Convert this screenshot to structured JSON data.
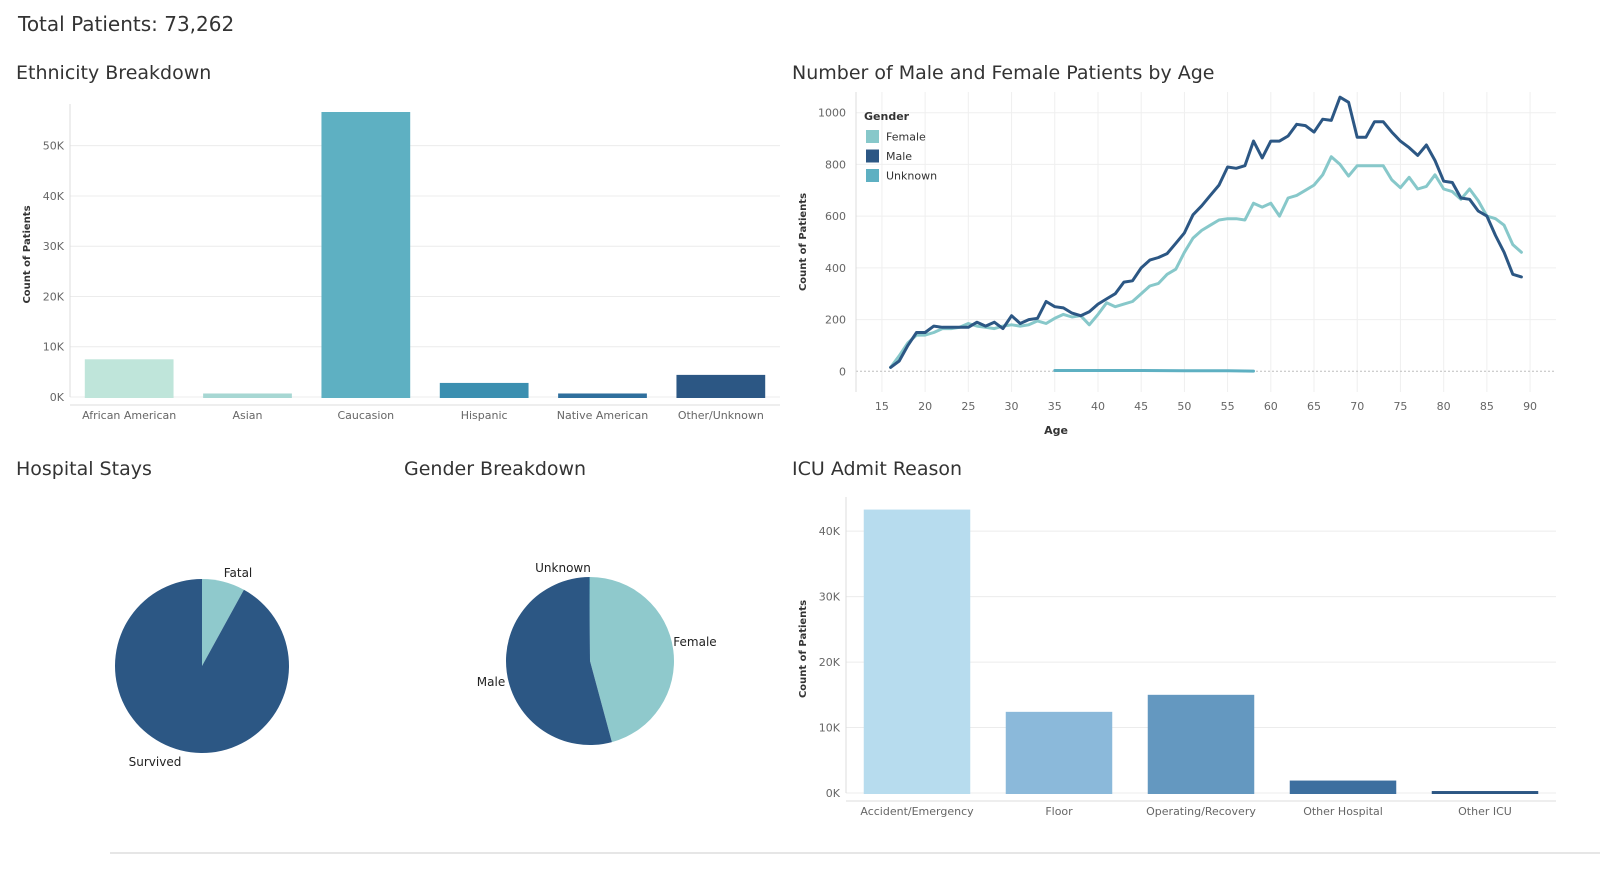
{
  "header": {
    "total_label": "Total Patients: 73,262"
  },
  "colors": {
    "ethnicity": [
      "#bfe5da",
      "#a7d7d3",
      "#5eb0c2",
      "#3b8fb0",
      "#2f6f9d",
      "#2c5784"
    ],
    "female": "#87c8ca",
    "male": "#2c5784",
    "unknown": "#5eb0c2",
    "icu": [
      "#b7dcee",
      "#8bb9da",
      "#6498c0",
      "#3d6f9f",
      "#2c5784"
    ],
    "pie_dark": "#2c5784",
    "pie_light": "#8fc9cc"
  },
  "chart_data": [
    {
      "id": "ethnicity",
      "type": "bar",
      "title": "Ethnicity Breakdown",
      "ylabel": "Count of Patients",
      "categories": [
        "African American",
        "Asian",
        "Caucasion",
        "Hispanic",
        "Native American",
        "Other/Unknown"
      ],
      "values": [
        7500,
        700,
        56700,
        2800,
        700,
        4400
      ],
      "ylim": [
        0,
        56700
      ],
      "yticks": [
        0,
        10000,
        20000,
        30000,
        40000,
        50000
      ],
      "ytick_labels": [
        "0K",
        "10K",
        "20K",
        "30K",
        "40K",
        "50K"
      ]
    },
    {
      "id": "age",
      "type": "line",
      "title": "Number of Male and Female Patients by Age",
      "xlabel": "Age",
      "ylabel": "Count of Patients",
      "xlim": [
        12,
        93
      ],
      "ylim": [
        -80,
        1080
      ],
      "xticks": [
        15,
        20,
        25,
        30,
        35,
        40,
        45,
        50,
        55,
        60,
        65,
        70,
        75,
        80,
        85,
        90
      ],
      "yticks": [
        0,
        200,
        400,
        600,
        800,
        1000
      ],
      "legend": {
        "title": "Gender",
        "items": [
          "Female",
          "Male",
          "Unknown"
        ]
      },
      "x": [
        16,
        17,
        18,
        19,
        20,
        21,
        22,
        23,
        24,
        25,
        26,
        27,
        28,
        29,
        30,
        31,
        32,
        33,
        34,
        35,
        36,
        37,
        38,
        39,
        40,
        41,
        42,
        43,
        44,
        45,
        46,
        47,
        48,
        49,
        50,
        51,
        52,
        53,
        54,
        55,
        56,
        57,
        58,
        59,
        60,
        61,
        62,
        63,
        64,
        65,
        66,
        67,
        68,
        69,
        70,
        71,
        72,
        73,
        74,
        75,
        76,
        77,
        78,
        79,
        80,
        81,
        82,
        83,
        84,
        85,
        86,
        87,
        88,
        89
      ],
      "series": [
        {
          "name": "Female",
          "values": [
            15,
            60,
            110,
            140,
            140,
            150,
            165,
            165,
            170,
            185,
            175,
            170,
            165,
            175,
            180,
            175,
            180,
            195,
            185,
            205,
            220,
            210,
            215,
            180,
            220,
            265,
            250,
            260,
            270,
            300,
            330,
            340,
            375,
            395,
            460,
            515,
            545,
            565,
            585,
            590,
            590,
            585,
            650,
            635,
            650,
            600,
            670,
            680,
            700,
            720,
            760,
            830,
            800,
            755,
            795,
            795,
            795,
            795,
            740,
            710,
            750,
            705,
            715,
            760,
            705,
            695,
            665,
            705,
            660,
            600,
            590,
            565,
            490,
            460
          ]
        },
        {
          "name": "Male",
          "values": [
            15,
            40,
            100,
            150,
            150,
            175,
            170,
            170,
            170,
            170,
            190,
            175,
            190,
            165,
            215,
            185,
            200,
            205,
            270,
            250,
            245,
            225,
            215,
            230,
            260,
            280,
            300,
            345,
            350,
            400,
            430,
            440,
            455,
            495,
            535,
            605,
            640,
            680,
            720,
            790,
            785,
            795,
            890,
            825,
            890,
            890,
            910,
            955,
            950,
            925,
            975,
            970,
            1060,
            1040,
            905,
            905,
            965,
            965,
            925,
            890,
            865,
            835,
            875,
            815,
            735,
            730,
            670,
            665,
            620,
            600,
            525,
            460,
            375,
            365
          ]
        },
        {
          "name": "Unknown",
          "x": [
            35,
            40,
            45,
            50,
            55,
            58
          ],
          "values": [
            3,
            3,
            3,
            2,
            2,
            1
          ]
        }
      ]
    },
    {
      "id": "stays",
      "type": "pie",
      "title": "Hospital Stays",
      "labels": [
        "Fatal",
        "Survived"
      ],
      "values": [
        8,
        92
      ]
    },
    {
      "id": "gender",
      "type": "pie",
      "title": "Gender Breakdown",
      "labels": [
        "Female",
        "Male",
        "Unknown"
      ],
      "values": [
        45.8,
        54.1,
        0.1
      ]
    },
    {
      "id": "icu",
      "type": "bar",
      "title": "ICU Admit Reason",
      "ylabel": "Count of Patients",
      "categories": [
        "Accident/Emergency",
        "Floor",
        "Operating/Recovery",
        "Other Hospital",
        "Other ICU"
      ],
      "values": [
        43300,
        12400,
        15000,
        1900,
        300
      ],
      "ylim": [
        0,
        44000
      ],
      "yticks": [
        0,
        10000,
        20000,
        30000,
        40000
      ],
      "ytick_labels": [
        "0K",
        "10K",
        "20K",
        "30K",
        "40K"
      ]
    }
  ]
}
